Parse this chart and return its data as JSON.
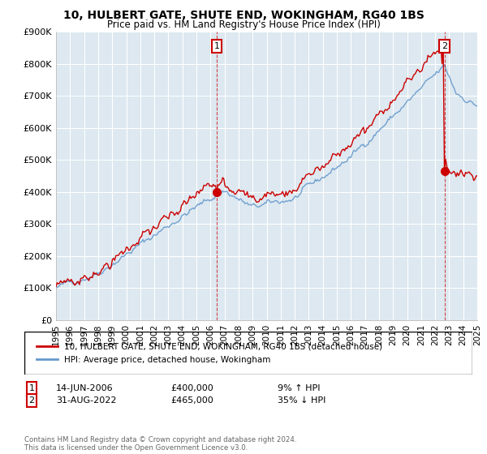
{
  "title": "10, HULBERT GATE, SHUTE END, WOKINGHAM, RG40 1BS",
  "subtitle": "Price paid vs. HM Land Registry's House Price Index (HPI)",
  "ylim": [
    0,
    900000
  ],
  "yticks": [
    0,
    100000,
    200000,
    300000,
    400000,
    500000,
    600000,
    700000,
    800000,
    900000
  ],
  "ytick_labels": [
    "£0",
    "£100K",
    "£200K",
    "£300K",
    "£400K",
    "£500K",
    "£600K",
    "£700K",
    "£800K",
    "£900K"
  ],
  "sale1_year": 2006.45,
  "sale1_price": 400000,
  "sale1_label": "14-JUN-2006",
  "sale1_amount": "£400,000",
  "sale1_hpi": "9% ↑ HPI",
  "sale2_year": 2022.66,
  "sale2_price": 465000,
  "sale2_label": "31-AUG-2022",
  "sale2_amount": "£465,000",
  "sale2_hpi": "35% ↓ HPI",
  "legend1": "10, HULBERT GATE, SHUTE END, WOKINGHAM, RG40 1BS (detached house)",
  "legend2": "HPI: Average price, detached house, Wokingham",
  "footnote": "Contains HM Land Registry data © Crown copyright and database right 2024.\nThis data is licensed under the Open Government Licence v3.0.",
  "red_color": "#cc0000",
  "blue_color": "#6699cc",
  "chart_bg": "#dde8f0",
  "xmin": 1995,
  "xmax": 2025
}
